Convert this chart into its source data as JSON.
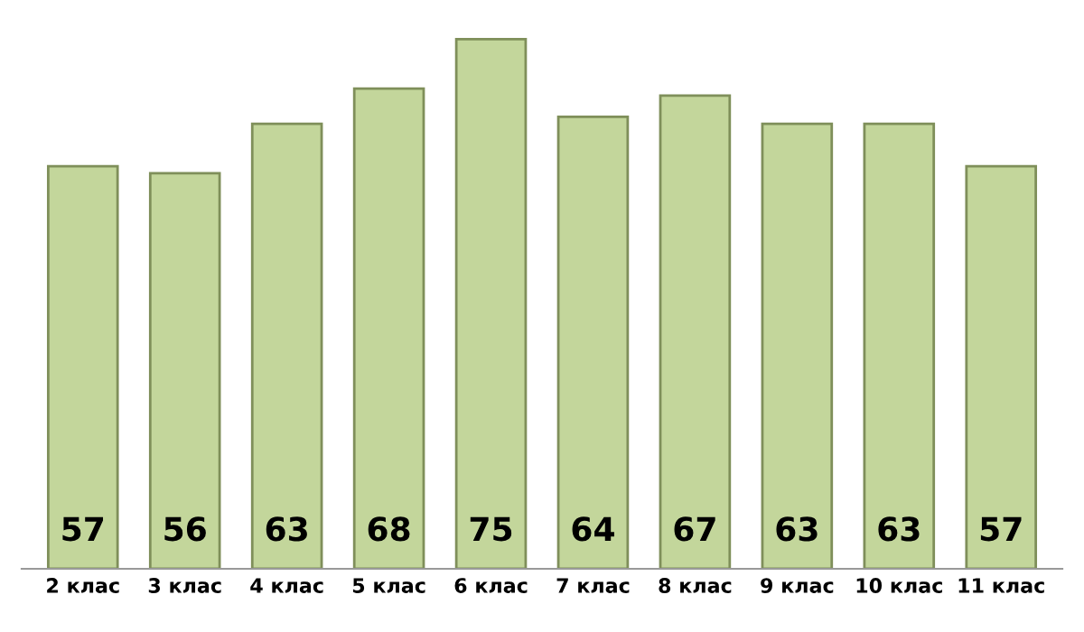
{
  "chart_data": {
    "type": "bar",
    "categories": [
      "2 клас",
      "3 клас",
      "4 клас",
      "5 клас",
      "6 клас",
      "7 клас",
      "8 клас",
      "9 клас",
      "10 клас",
      "11 клас"
    ],
    "values": [
      57,
      56,
      63,
      68,
      75,
      64,
      67,
      63,
      63,
      57
    ],
    "color": "#c3d69b",
    "data_labels": true,
    "grid": false,
    "legend": false
  }
}
